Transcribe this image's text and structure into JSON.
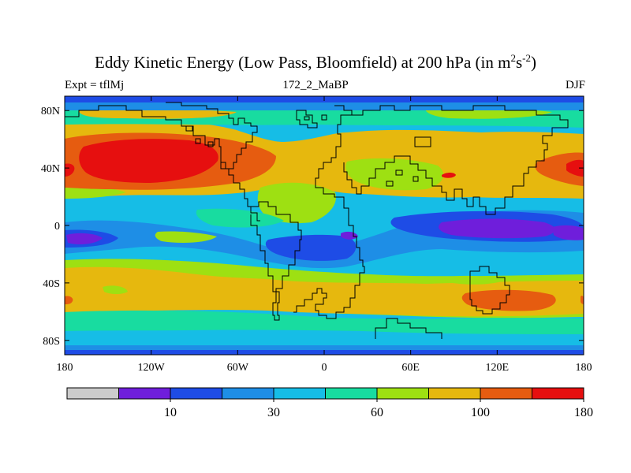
{
  "title": {
    "prefix": "Eddy Kinetic Energy (Low Pass, Bloomfield) at 200 hPa (in m",
    "exp1": "2",
    "mid": "s",
    "exp2": "-2",
    "suffix": ")"
  },
  "left_subtitle": "Expt = tflMj",
  "center_subtitle": "172_2_MaBP",
  "right_subtitle": "DJF",
  "lat_ticks": [
    {
      "label": "80N",
      "lat": 80
    },
    {
      "label": "40N",
      "lat": 40
    },
    {
      "label": "0",
      "lat": 0
    },
    {
      "label": "40S",
      "lat": -40
    },
    {
      "label": "80S",
      "lat": -80
    }
  ],
  "lon_ticks": [
    {
      "label": "180",
      "lon": -180
    },
    {
      "label": "120W",
      "lon": -120
    },
    {
      "label": "60W",
      "lon": -60
    },
    {
      "label": "0",
      "lon": 0
    },
    {
      "label": "60E",
      "lon": 60
    },
    {
      "label": "120E",
      "lon": 120
    },
    {
      "label": "180",
      "lon": 180
    }
  ],
  "colorbar": {
    "colors": [
      "#cccccc",
      "#6f1edb",
      "#1e4ce6",
      "#1e8ee6",
      "#16bde6",
      "#18dca0",
      "#9ee012",
      "#e6b80e",
      "#e65c10",
      "#e60f0f"
    ],
    "labels": [
      {
        "text": "10",
        "boundary": 2
      },
      {
        "text": "30",
        "boundary": 4
      },
      {
        "text": "60",
        "boundary": 6
      },
      {
        "text": "100",
        "boundary": 8
      },
      {
        "text": "180",
        "boundary": 10
      }
    ]
  }
}
